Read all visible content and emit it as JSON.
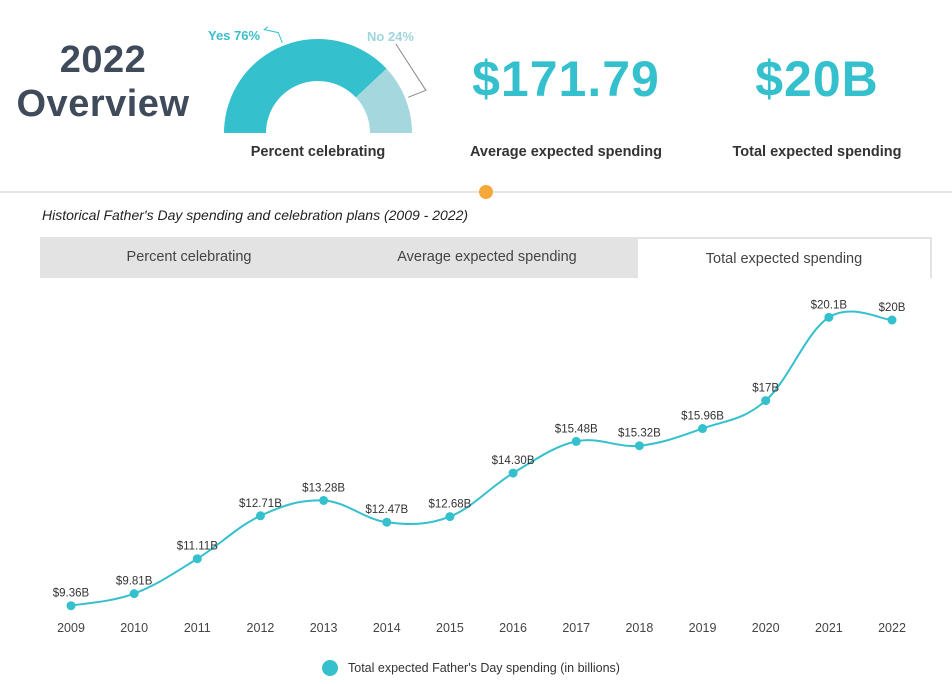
{
  "overview": {
    "year": "2022",
    "title": "Overview"
  },
  "gauge": {
    "yes_label": "Yes 76%",
    "no_label": "No 24%",
    "yes_fraction": 0.76,
    "caption": "Percent celebrating",
    "colors": {
      "yes": "#34c0cc",
      "no": "#a5d8de"
    }
  },
  "stats": [
    {
      "value": "$171.79",
      "caption": "Average expected spending"
    },
    {
      "value": "$20B",
      "caption": "Total expected spending"
    }
  ],
  "accent_color": "#34c0cc",
  "marker_color": "#f6a83a",
  "chart_heading": "Historical Father's Day spending and celebration plans (2009 - 2022)",
  "tabs": [
    {
      "label": "Percent celebrating",
      "active": false
    },
    {
      "label": "Average expected spending",
      "active": false
    },
    {
      "label": "Total expected spending",
      "active": true
    }
  ],
  "chart_data": {
    "type": "line",
    "categories": [
      "2009",
      "2010",
      "2011",
      "2012",
      "2013",
      "2014",
      "2015",
      "2016",
      "2017",
      "2018",
      "2019",
      "2020",
      "2021",
      "2022"
    ],
    "series": [
      {
        "name": "Total expected Father's Day spending (in billions)",
        "values": [
          9.36,
          9.81,
          11.11,
          12.71,
          13.28,
          12.47,
          12.68,
          14.3,
          15.48,
          15.32,
          15.96,
          17,
          20.1,
          20
        ],
        "labels": [
          "$9.36B",
          "$9.81B",
          "$11.11B",
          "$12.71B",
          "$13.28B",
          "$12.47B",
          "$12.68B",
          "$14.30B",
          "$15.48B",
          "$15.32B",
          "$15.96B",
          "$17B",
          "$20.1B",
          "$20B"
        ]
      }
    ],
    "title": "",
    "xlabel": "",
    "ylabel": "",
    "ylim": [
      9,
      21
    ],
    "grid": false,
    "legend": "bottom-center",
    "color": "#34c0cc"
  }
}
